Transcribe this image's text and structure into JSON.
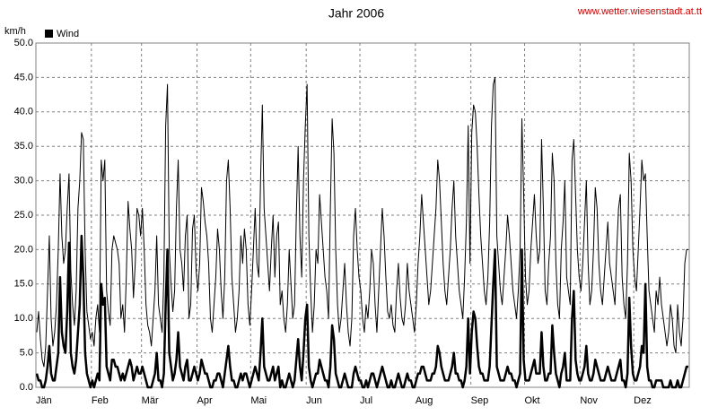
{
  "chart_data": {
    "type": "line",
    "title": "Jahr 2006",
    "source": "www.wetter.wiesenstadt.at.tt",
    "y_label": "km/h",
    "xlim": [
      0,
      365
    ],
    "xticks": [
      {
        "value": 0,
        "label": "Jän"
      },
      {
        "value": 31,
        "label": "Feb"
      },
      {
        "value": 59,
        "label": "Mär"
      },
      {
        "value": 90,
        "label": "Apr"
      },
      {
        "value": 120,
        "label": "Mai"
      },
      {
        "value": 151,
        "label": "Jun"
      },
      {
        "value": 181,
        "label": "Jul"
      },
      {
        "value": 212,
        "label": "Aug"
      },
      {
        "value": 243,
        "label": "Sep"
      },
      {
        "value": 273,
        "label": "Okt"
      },
      {
        "value": 304,
        "label": "Nov"
      },
      {
        "value": 334,
        "label": "Dez"
      }
    ],
    "ylim": [
      0,
      50
    ],
    "yticks": [
      {
        "value": 0,
        "label": "0.0"
      },
      {
        "value": 5,
        "label": "5.0"
      },
      {
        "value": 10,
        "label": "10.0"
      },
      {
        "value": 15,
        "label": "15.0"
      },
      {
        "value": 20,
        "label": "20.0"
      },
      {
        "value": 25,
        "label": "25.0"
      },
      {
        "value": 30,
        "label": "30.0"
      },
      {
        "value": 35,
        "label": "35.0"
      },
      {
        "value": 40,
        "label": "40.0"
      },
      {
        "value": 45,
        "label": "45.0"
      },
      {
        "value": 50,
        "label": "50.0"
      }
    ],
    "grid": true,
    "series": [
      {
        "name": "Wind",
        "color": "#000000",
        "values": [
          2,
          1,
          1,
          0,
          0,
          1,
          3,
          6,
          2,
          1,
          1,
          3,
          5,
          16,
          8,
          6,
          5,
          11,
          21,
          5,
          3,
          2,
          4,
          8,
          12,
          22,
          16,
          5,
          2,
          1,
          0,
          1,
          0,
          1,
          2,
          1,
          15,
          12,
          13,
          3,
          2,
          1,
          4,
          4,
          3,
          3,
          2,
          1,
          2,
          1,
          2,
          3,
          4,
          3,
          1,
          2,
          3,
          2,
          2,
          3,
          2,
          1,
          0,
          0,
          0,
          1,
          2,
          5,
          1,
          1,
          0,
          2,
          12,
          20,
          5,
          3,
          1,
          2,
          4,
          8,
          3,
          2,
          1,
          3,
          4,
          1,
          1,
          2,
          3,
          2,
          1,
          2,
          4,
          3,
          2,
          2,
          1,
          0,
          0,
          1,
          1,
          2,
          2,
          1,
          0,
          2,
          4,
          6,
          3,
          1,
          1,
          0,
          0,
          1,
          2,
          1,
          2,
          2,
          1,
          0,
          1,
          2,
          3,
          2,
          1,
          5,
          10,
          3,
          2,
          1,
          1,
          2,
          3,
          1,
          2,
          3,
          0,
          1,
          0,
          0,
          1,
          2,
          1,
          0,
          1,
          4,
          7,
          3,
          1,
          5,
          10,
          12,
          3,
          1,
          0,
          1,
          2,
          2,
          4,
          3,
          2,
          1,
          1,
          0,
          3,
          9,
          7,
          2,
          1,
          0,
          0,
          1,
          2,
          1,
          0,
          0,
          0,
          2,
          3,
          2,
          1,
          1,
          0,
          0,
          1,
          0,
          1,
          2,
          2,
          1,
          0,
          1,
          2,
          3,
          2,
          1,
          0,
          0,
          1,
          0,
          0,
          1,
          2,
          1,
          0,
          0,
          1,
          2,
          1,
          1,
          0,
          0,
          1,
          2,
          2,
          3,
          3,
          2,
          1,
          1,
          1,
          2,
          2,
          3,
          6,
          5,
          3,
          2,
          1,
          1,
          1,
          2,
          3,
          5,
          2,
          2,
          1,
          1,
          0,
          1,
          3,
          10,
          2,
          8,
          11,
          10,
          6,
          3,
          2,
          2,
          1,
          1,
          1,
          3,
          9,
          15,
          20,
          3,
          2,
          1,
          1,
          1,
          2,
          3,
          2,
          2,
          1,
          1,
          0,
          1,
          2,
          20,
          4,
          1,
          1,
          1,
          2,
          3,
          4,
          2,
          2,
          2,
          8,
          3,
          1,
          1,
          2,
          2,
          9,
          5,
          2,
          1,
          0,
          2,
          3,
          5,
          1,
          1,
          1,
          10,
          14,
          4,
          2,
          1,
          1,
          2,
          3,
          6,
          2,
          1,
          1,
          2,
          4,
          3,
          2,
          1,
          1,
          1,
          2,
          3,
          2,
          1,
          1,
          1,
          2,
          3,
          4,
          1,
          1,
          0,
          2,
          13,
          6,
          2,
          1,
          1,
          2,
          3,
          6,
          5,
          15,
          3,
          1,
          1,
          0,
          0,
          1,
          1,
          1,
          1,
          0,
          0,
          0,
          0,
          1,
          0,
          0,
          0,
          1,
          0,
          0,
          1,
          2,
          3,
          3
        ]
      },
      {
        "color": "#000000",
        "values": [
          8,
          11,
          7,
          4,
          3,
          6,
          14,
          22,
          10,
          6,
          8,
          12,
          20,
          31,
          22,
          18,
          20,
          26,
          31,
          17,
          12,
          9,
          14,
          26,
          30,
          37,
          36,
          20,
          11,
          9,
          7,
          8,
          6,
          10,
          12,
          8,
          33,
          30,
          33,
          14,
          11,
          9,
          20,
          22,
          21,
          20,
          18,
          10,
          12,
          8,
          16,
          27,
          23,
          20,
          13,
          18,
          26,
          25,
          22,
          26,
          20,
          12,
          9,
          8,
          6,
          10,
          14,
          22,
          12,
          10,
          8,
          16,
          38,
          44,
          20,
          15,
          11,
          14,
          26,
          33,
          20,
          18,
          14,
          22,
          25,
          10,
          12,
          23,
          25,
          17,
          14,
          18,
          29,
          27,
          24,
          22,
          18,
          10,
          8,
          12,
          16,
          23,
          20,
          14,
          10,
          16,
          30,
          33,
          26,
          16,
          12,
          8,
          10,
          14,
          22,
          18,
          23,
          20,
          12,
          9,
          14,
          20,
          26,
          18,
          16,
          30,
          41,
          26,
          22,
          18,
          14,
          20,
          25,
          16,
          22,
          24,
          12,
          14,
          10,
          8,
          12,
          20,
          15,
          10,
          12,
          25,
          35,
          22,
          16,
          30,
          38,
          44,
          22,
          14,
          8,
          12,
          20,
          18,
          28,
          24,
          20,
          16,
          14,
          10,
          26,
          39,
          34,
          20,
          12,
          8,
          10,
          14,
          18,
          12,
          8,
          6,
          10,
          22,
          26,
          20,
          16,
          14,
          10,
          8,
          12,
          10,
          14,
          20,
          18,
          12,
          8,
          14,
          20,
          26,
          22,
          16,
          11,
          10,
          12,
          9,
          8,
          14,
          18,
          13,
          10,
          9,
          12,
          18,
          14,
          12,
          10,
          8,
          12,
          18,
          22,
          28,
          24,
          20,
          16,
          12,
          14,
          18,
          22,
          26,
          33,
          30,
          24,
          18,
          14,
          12,
          16,
          20,
          26,
          30,
          22,
          18,
          14,
          12,
          10,
          16,
          24,
          38,
          18,
          37,
          41,
          40,
          35,
          28,
          22,
          18,
          14,
          12,
          16,
          24,
          38,
          44,
          45,
          22,
          18,
          14,
          12,
          16,
          20,
          25,
          22,
          18,
          14,
          12,
          10,
          14,
          20,
          39,
          28,
          16,
          12,
          14,
          20,
          24,
          28,
          22,
          18,
          20,
          36,
          26,
          14,
          12,
          18,
          22,
          34,
          30,
          18,
          12,
          10,
          20,
          24,
          30,
          16,
          14,
          12,
          33,
          36,
          28,
          20,
          16,
          14,
          18,
          24,
          30,
          18,
          12,
          14,
          20,
          29,
          26,
          18,
          14,
          12,
          16,
          20,
          24,
          18,
          16,
          14,
          12,
          20,
          26,
          28,
          16,
          12,
          10,
          18,
          34,
          30,
          20,
          16,
          14,
          20,
          26,
          33,
          30,
          31,
          22,
          14,
          12,
          10,
          8,
          14,
          12,
          16,
          12,
          10,
          8,
          6,
          8,
          12,
          10,
          6,
          5,
          12,
          8,
          6,
          10,
          18,
          20,
          20
        ]
      }
    ]
  }
}
